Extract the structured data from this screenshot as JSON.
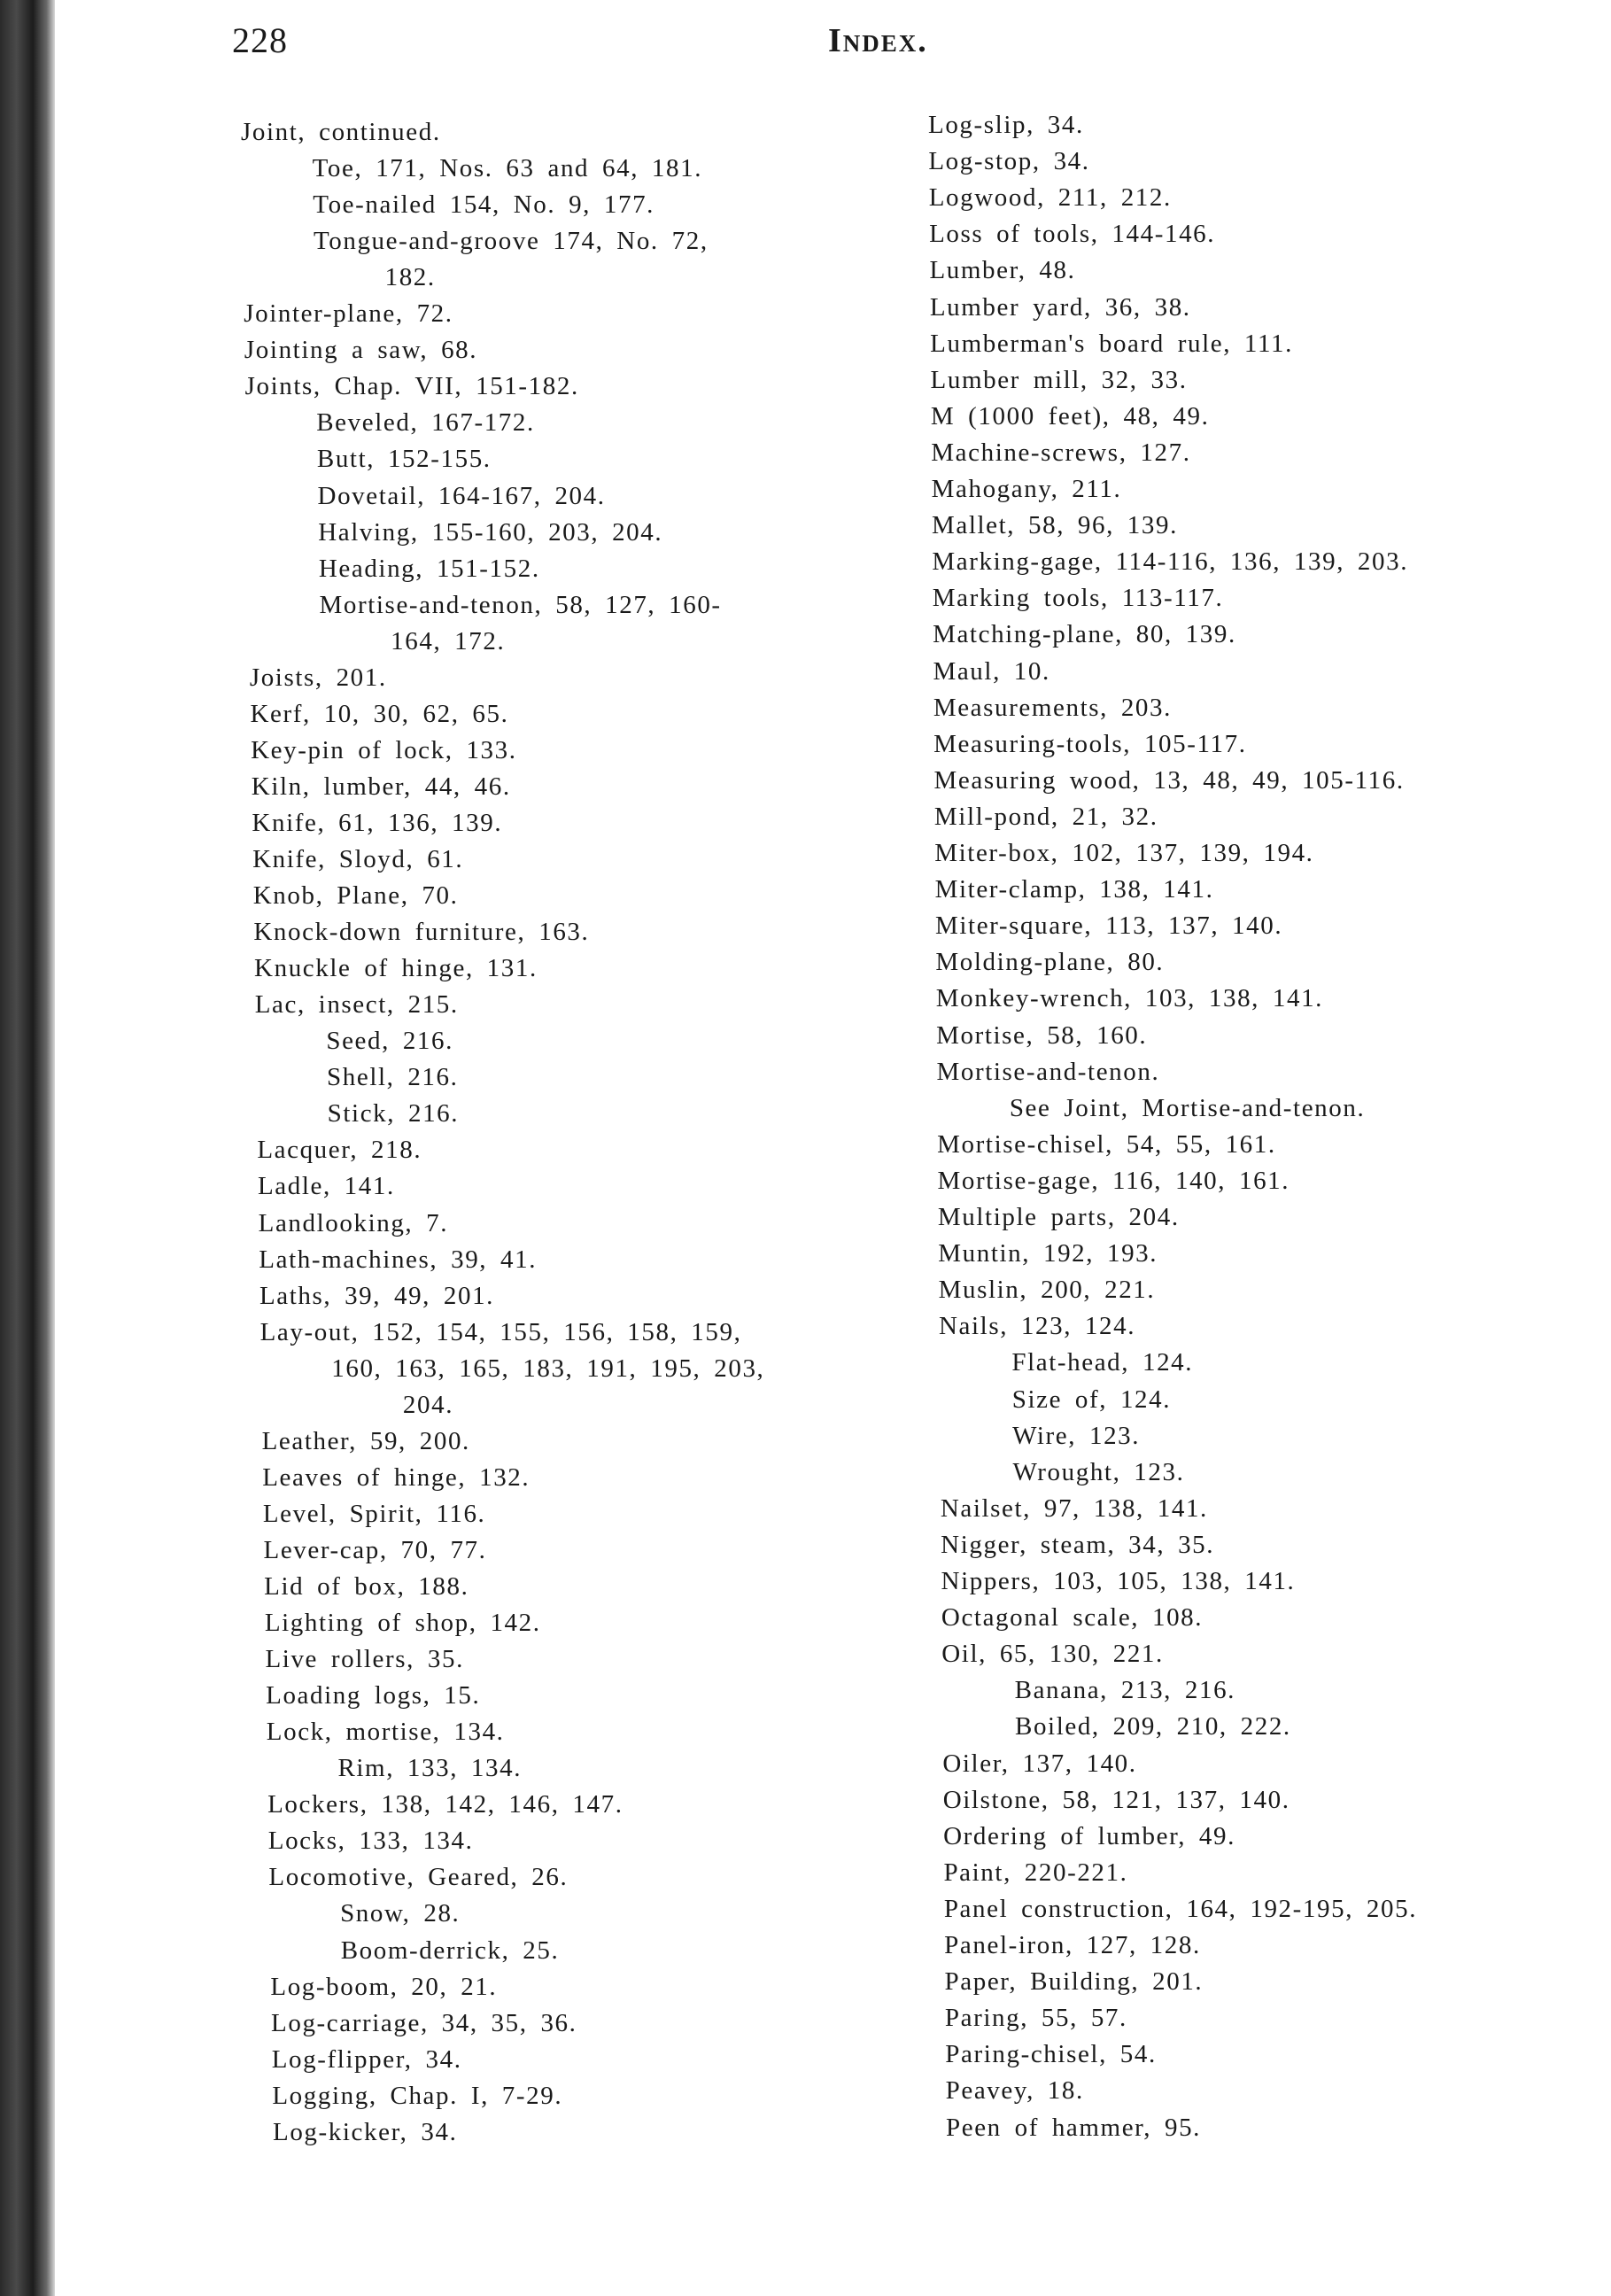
{
  "header": {
    "page_number": "228",
    "title": "Index."
  },
  "left_column": [
    {
      "text": "Joint, continued.",
      "level": 0
    },
    {
      "text": "Toe, 171, Nos. 63 and 64, 181.",
      "level": 1
    },
    {
      "text": "Toe-nailed 154, No. 9, 177.",
      "level": 1
    },
    {
      "text": "Tongue-and-groove 174, No. 72,",
      "level": 1
    },
    {
      "text": "182.",
      "level": 2
    },
    {
      "text": "Jointer-plane, 72.",
      "level": 0
    },
    {
      "text": "Jointing a saw, 68.",
      "level": 0
    },
    {
      "text": "Joints, Chap. VII, 151-182.",
      "level": 0
    },
    {
      "text": "Beveled, 167-172.",
      "level": 1
    },
    {
      "text": "Butt, 152-155.",
      "level": 1
    },
    {
      "text": "Dovetail, 164-167, 204.",
      "level": 1
    },
    {
      "text": "Halving, 155-160, 203, 204.",
      "level": 1
    },
    {
      "text": "Heading, 151-152.",
      "level": 1
    },
    {
      "text": "Mortise-and-tenon, 58, 127, 160-",
      "level": 1
    },
    {
      "text": "164, 172.",
      "level": 2
    },
    {
      "text": "Joists, 201.",
      "level": 0
    },
    {
      "text": "Kerf, 10, 30, 62, 65.",
      "level": 0
    },
    {
      "text": "Key-pin of lock, 133.",
      "level": 0
    },
    {
      "text": "Kiln, lumber, 44, 46.",
      "level": 0
    },
    {
      "text": "Knife, 61, 136, 139.",
      "level": 0
    },
    {
      "text": "Knife, Sloyd, 61.",
      "level": 0
    },
    {
      "text": "Knob, Plane, 70.",
      "level": 0
    },
    {
      "text": "Knock-down furniture, 163.",
      "level": 0
    },
    {
      "text": "Knuckle of hinge, 131.",
      "level": 0
    },
    {
      "text": "Lac, insect, 215.",
      "level": 0
    },
    {
      "text": "Seed, 216.",
      "level": 1
    },
    {
      "text": "Shell, 216.",
      "level": 1
    },
    {
      "text": "Stick, 216.",
      "level": 1
    },
    {
      "text": "Lacquer, 218.",
      "level": 0
    },
    {
      "text": "Ladle, 141.",
      "level": 0
    },
    {
      "text": "Landlooking, 7.",
      "level": 0
    },
    {
      "text": "Lath-machines, 39, 41.",
      "level": 0
    },
    {
      "text": "Laths, 39, 49, 201.",
      "level": 0
    },
    {
      "text": "Lay-out, 152, 154, 155, 156, 158, 159,",
      "level": 0
    },
    {
      "text": "160, 163, 165, 183, 191, 195, 203,",
      "level": 1
    },
    {
      "text": "204.",
      "level": 2
    },
    {
      "text": "Leather, 59, 200.",
      "level": 0
    },
    {
      "text": "Leaves of hinge, 132.",
      "level": 0
    },
    {
      "text": "Level, Spirit, 116.",
      "level": 0
    },
    {
      "text": "Lever-cap, 70, 77.",
      "level": 0
    },
    {
      "text": "Lid of box, 188.",
      "level": 0
    },
    {
      "text": "Lighting of shop, 142.",
      "level": 0
    },
    {
      "text": "Live rollers, 35.",
      "level": 0
    },
    {
      "text": "Loading logs, 15.",
      "level": 0
    },
    {
      "text": "Lock, mortise, 134.",
      "level": 0
    },
    {
      "text": "Rim, 133, 134.",
      "level": 1
    },
    {
      "text": "Lockers, 138, 142, 146, 147.",
      "level": 0
    },
    {
      "text": "Locks, 133, 134.",
      "level": 0
    },
    {
      "text": "Locomotive, Geared, 26.",
      "level": 0
    },
    {
      "text": "Snow, 28.",
      "level": 1
    },
    {
      "text": "Boom-derrick, 25.",
      "level": 1
    },
    {
      "text": "Log-boom, 20, 21.",
      "level": 0
    },
    {
      "text": "Log-carriage, 34, 35, 36.",
      "level": 0
    },
    {
      "text": "Log-flipper, 34.",
      "level": 0
    },
    {
      "text": "Logging, Chap. I, 7-29.",
      "level": 0
    },
    {
      "text": "Log-kicker, 34.",
      "level": 0
    }
  ],
  "right_column": [
    {
      "text": "Log-slip, 34.",
      "level": 0
    },
    {
      "text": "Log-stop, 34.",
      "level": 0
    },
    {
      "text": "Logwood, 211, 212.",
      "level": 0
    },
    {
      "text": "Loss of tools, 144-146.",
      "level": 0
    },
    {
      "text": "Lumber, 48.",
      "level": 0
    },
    {
      "text": "Lumber yard, 36, 38.",
      "level": 0
    },
    {
      "text": "Lumberman's board rule, 111.",
      "level": 0
    },
    {
      "text": "Lumber mill, 32, 33.",
      "level": 0
    },
    {
      "text": "M (1000 feet), 48, 49.",
      "level": 0
    },
    {
      "text": "Machine-screws, 127.",
      "level": 0
    },
    {
      "text": "Mahogany, 211.",
      "level": 0
    },
    {
      "text": "Mallet, 58, 96, 139.",
      "level": 0
    },
    {
      "text": "Marking-gage, 114-116, 136, 139, 203.",
      "level": 0
    },
    {
      "text": "Marking tools, 113-117.",
      "level": 0
    },
    {
      "text": "Matching-plane, 80, 139.",
      "level": 0
    },
    {
      "text": "Maul, 10.",
      "level": 0
    },
    {
      "text": "Measurements, 203.",
      "level": 0
    },
    {
      "text": "Measuring-tools, 105-117.",
      "level": 0
    },
    {
      "text": "Measuring wood, 13, 48, 49, 105-116.",
      "level": 0
    },
    {
      "text": "Mill-pond, 21, 32.",
      "level": 0
    },
    {
      "text": "Miter-box, 102, 137, 139, 194.",
      "level": 0
    },
    {
      "text": "Miter-clamp, 138, 141.",
      "level": 0
    },
    {
      "text": "Miter-square, 113, 137, 140.",
      "level": 0
    },
    {
      "text": "Molding-plane, 80.",
      "level": 0
    },
    {
      "text": "Monkey-wrench, 103, 138, 141.",
      "level": 0
    },
    {
      "text": "Mortise, 58, 160.",
      "level": 0
    },
    {
      "text": "Mortise-and-tenon.",
      "level": 0
    },
    {
      "text": "See Joint, Mortise-and-tenon.",
      "level": 1
    },
    {
      "text": "Mortise-chisel, 54, 55, 161.",
      "level": 0
    },
    {
      "text": "Mortise-gage, 116, 140, 161.",
      "level": 0
    },
    {
      "text": "Multiple parts, 204.",
      "level": 0
    },
    {
      "text": "Muntin, 192, 193.",
      "level": 0
    },
    {
      "text": "Muslin, 200, 221.",
      "level": 0
    },
    {
      "text": "Nails, 123, 124.",
      "level": 0
    },
    {
      "text": "Flat-head, 124.",
      "level": 1
    },
    {
      "text": "Size of, 124.",
      "level": 1
    },
    {
      "text": "Wire, 123.",
      "level": 1
    },
    {
      "text": "Wrought, 123.",
      "level": 1
    },
    {
      "text": "Nailset, 97, 138, 141.",
      "level": 0
    },
    {
      "text": "Nigger, steam, 34, 35.",
      "level": 0
    },
    {
      "text": "Nippers, 103, 105, 138, 141.",
      "level": 0
    },
    {
      "text": "Octagonal scale, 108.",
      "level": 0
    },
    {
      "text": "Oil, 65, 130, 221.",
      "level": 0
    },
    {
      "text": "Banana, 213, 216.",
      "level": 1
    },
    {
      "text": "Boiled, 209, 210, 222.",
      "level": 1
    },
    {
      "text": "Oiler, 137, 140.",
      "level": 0
    },
    {
      "text": "Oilstone, 58, 121, 137, 140.",
      "level": 0
    },
    {
      "text": "Ordering of lumber, 49.",
      "level": 0
    },
    {
      "text": "Paint, 220-221.",
      "level": 0
    },
    {
      "text": "Panel construction, 164, 192-195, 205.",
      "level": 0
    },
    {
      "text": "Panel-iron, 127, 128.",
      "level": 0
    },
    {
      "text": "Paper, Building, 201.",
      "level": 0
    },
    {
      "text": "Paring, 55, 57.",
      "level": 0
    },
    {
      "text": "Paring-chisel, 54.",
      "level": 0
    },
    {
      "text": "Peavey, 18.",
      "level": 0
    },
    {
      "text": "Peen of hammer, 95.",
      "level": 0
    }
  ]
}
